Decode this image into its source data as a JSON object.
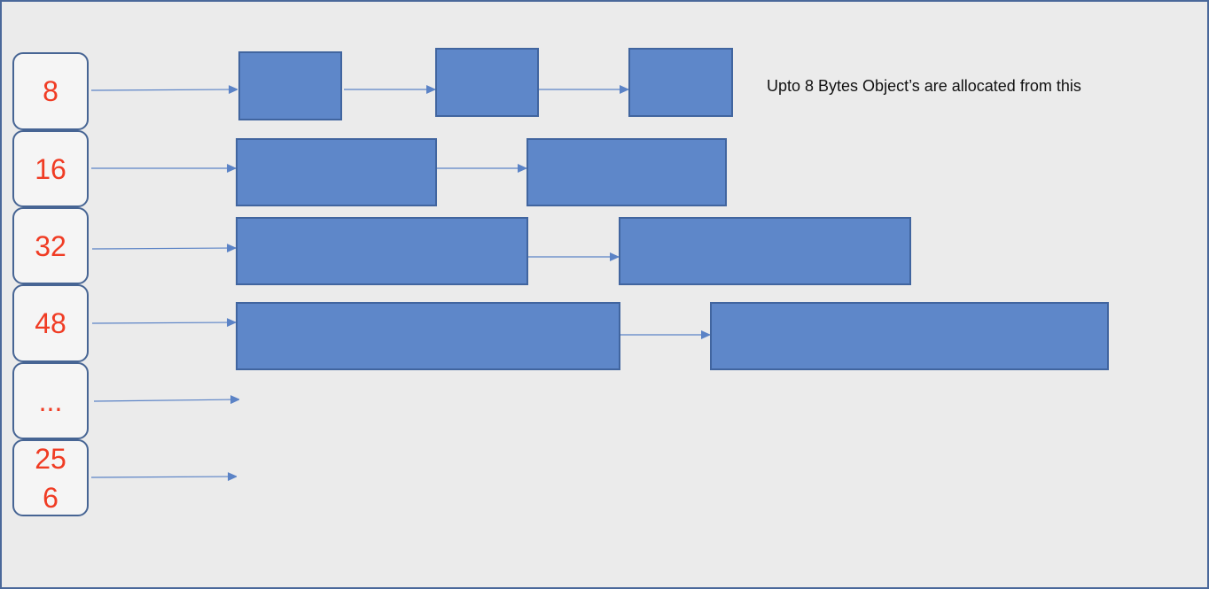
{
  "size_classes": [
    {
      "label": "8"
    },
    {
      "label": "16"
    },
    {
      "label": "32"
    },
    {
      "label": "48"
    },
    {
      "label": "..."
    },
    {
      "label": "25\n6"
    }
  ],
  "note": "Upto 8 Bytes Object’s are allocated from this",
  "colors": {
    "block": "#5e87c9",
    "block_border": "#41659f",
    "label": "#f03c24",
    "arrow": "#5b83c6",
    "background": "#ebebeb"
  }
}
